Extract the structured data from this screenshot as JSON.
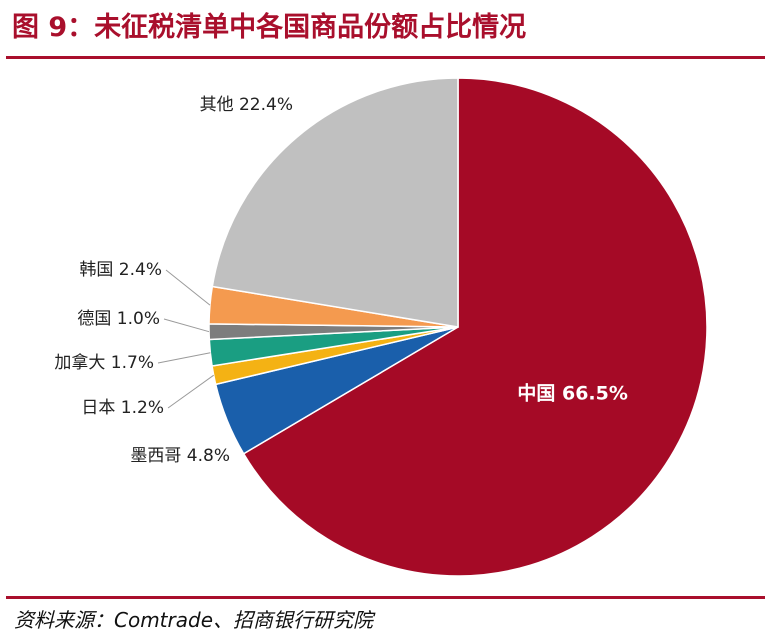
{
  "header": {
    "title": "图 9：未征税清单中各国商品份额占比情况"
  },
  "footer": {
    "source": "资料来源：Comtrade、招商银行研究院"
  },
  "chart_data": {
    "type": "pie",
    "title": "图 9：未征税清单中各国商品份额占比情况",
    "unit": "%",
    "slices": [
      {
        "label": "中国",
        "value": 66.5,
        "display": "中国 66.5%",
        "color": "#a50a26"
      },
      {
        "label": "墨西哥",
        "value": 4.8,
        "display": "墨西哥 4.8%",
        "color": "#1a5fab"
      },
      {
        "label": "日本",
        "value": 1.2,
        "display": "日本 1.2%",
        "color": "#f4b214"
      },
      {
        "label": "加拿大",
        "value": 1.7,
        "display": "加拿大 1.7%",
        "color": "#1a9e82"
      },
      {
        "label": "德国",
        "value": 1.0,
        "display": "德国 1.0%",
        "color": "#7d7d7d"
      },
      {
        "label": "韩国",
        "value": 2.4,
        "display": "韩国 2.4%",
        "color": "#f49a4f"
      },
      {
        "label": "其他",
        "value": 22.4,
        "display": "其他 22.4%",
        "color": "#c0c0c0"
      }
    ],
    "start_angle_deg": 0,
    "direction": "clockwise",
    "legend": "none"
  }
}
